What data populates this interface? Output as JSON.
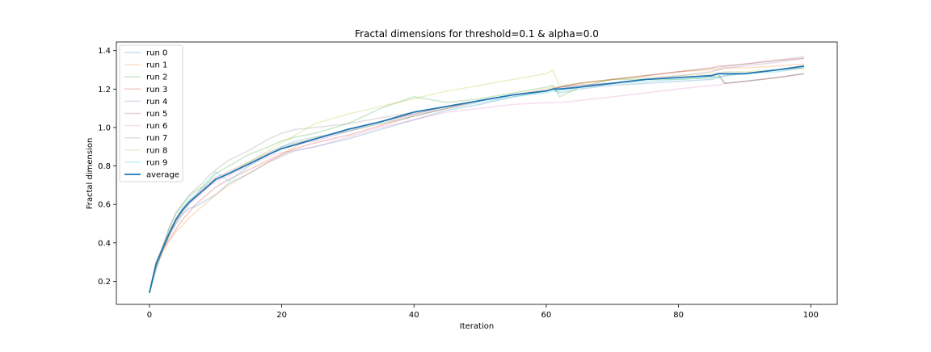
{
  "chart_data": {
    "type": "line",
    "title": "Fractal dimensions for threshold=0.1 & alpha=0.0",
    "xlabel": "Iteration",
    "ylabel": "Fractal dimension",
    "xlim": [
      -5,
      104
    ],
    "ylim": [
      0.08,
      1.445
    ],
    "xticks": [
      0,
      20,
      40,
      60,
      80,
      100
    ],
    "yticks": [
      0.2,
      0.4,
      0.6,
      0.8,
      1.0,
      1.2,
      1.4
    ],
    "xtick_labels": [
      "0",
      "20",
      "40",
      "60",
      "80",
      "100"
    ],
    "ytick_labels": [
      "0.2",
      "0.4",
      "0.6",
      "0.8",
      "1.0",
      "1.2",
      "1.4"
    ],
    "grid": false,
    "legend_position": "upper-left",
    "anchors": [
      0,
      1,
      2,
      3,
      4,
      5,
      6,
      7,
      8,
      9,
      10,
      12,
      15,
      18,
      20,
      22,
      25,
      30,
      35,
      40,
      45,
      50,
      55,
      60,
      61,
      62,
      65,
      70,
      75,
      80,
      85,
      86,
      87,
      90,
      95,
      99
    ],
    "series": [
      {
        "name": "run 0",
        "color": "#1f77b4",
        "opacity": 0.25,
        "width": 1.5,
        "values": [
          0.14,
          0.26,
          0.36,
          0.44,
          0.5,
          0.55,
          0.58,
          0.59,
          0.61,
          0.63,
          0.65,
          0.71,
          0.76,
          0.82,
          0.85,
          0.88,
          0.9,
          0.94,
          0.99,
          1.04,
          1.09,
          1.12,
          1.16,
          1.19,
          1.2,
          1.18,
          1.2,
          1.22,
          1.23,
          1.24,
          1.25,
          1.26,
          1.27,
          1.28,
          1.3,
          1.31
        ]
      },
      {
        "name": "run 1",
        "color": "#ff7f0e",
        "opacity": 0.25,
        "width": 1.5,
        "values": [
          0.14,
          0.27,
          0.35,
          0.41,
          0.46,
          0.49,
          0.53,
          0.56,
          0.59,
          0.62,
          0.65,
          0.7,
          0.76,
          0.82,
          0.86,
          0.9,
          0.95,
          0.98,
          1.02,
          1.06,
          1.1,
          1.14,
          1.17,
          1.2,
          1.21,
          1.21,
          1.23,
          1.25,
          1.27,
          1.29,
          1.3,
          1.3,
          1.31,
          1.31,
          1.32,
          1.33
        ]
      },
      {
        "name": "run 2",
        "color": "#2ca02c",
        "opacity": 0.25,
        "width": 1.5,
        "values": [
          0.14,
          0.3,
          0.38,
          0.48,
          0.55,
          0.6,
          0.64,
          0.67,
          0.69,
          0.72,
          0.76,
          0.8,
          0.86,
          0.9,
          0.93,
          0.95,
          0.97,
          1.02,
          1.1,
          1.16,
          1.13,
          1.15,
          1.18,
          1.21,
          1.22,
          1.16,
          1.21,
          1.25,
          1.25,
          1.25,
          1.26,
          1.27,
          1.23,
          1.24,
          1.26,
          1.28
        ]
      },
      {
        "name": "run 3",
        "color": "#d62728",
        "opacity": 0.25,
        "width": 1.5,
        "values": [
          0.14,
          0.28,
          0.36,
          0.42,
          0.47,
          0.52,
          0.56,
          0.6,
          0.63,
          0.66,
          0.69,
          0.73,
          0.78,
          0.83,
          0.86,
          0.89,
          0.92,
          0.96,
          1.01,
          1.06,
          1.1,
          1.14,
          1.17,
          1.19,
          1.2,
          1.21,
          1.23,
          1.25,
          1.27,
          1.29,
          1.31,
          1.32,
          1.32,
          1.33,
          1.35,
          1.36
        ]
      },
      {
        "name": "run 4",
        "color": "#9467bd",
        "opacity": 0.25,
        "width": 1.5,
        "values": [
          0.14,
          0.29,
          0.38,
          0.45,
          0.52,
          0.57,
          0.61,
          0.64,
          0.67,
          0.7,
          0.73,
          0.76,
          0.81,
          0.86,
          0.89,
          0.91,
          0.93,
          0.98,
          1.03,
          1.07,
          1.11,
          1.14,
          1.17,
          1.19,
          1.2,
          1.21,
          1.22,
          1.23,
          1.25,
          1.27,
          1.29,
          1.3,
          1.31,
          1.32,
          1.34,
          1.36
        ]
      },
      {
        "name": "run 5",
        "color": "#8c564b",
        "opacity": 0.25,
        "width": 1.5,
        "values": [
          0.14,
          0.29,
          0.37,
          0.46,
          0.53,
          0.58,
          0.62,
          0.65,
          0.68,
          0.71,
          0.74,
          0.77,
          0.82,
          0.87,
          0.9,
          0.92,
          0.94,
          0.99,
          1.03,
          1.07,
          1.11,
          1.14,
          1.17,
          1.19,
          1.2,
          1.21,
          1.22,
          1.23,
          1.25,
          1.26,
          1.27,
          1.28,
          1.23,
          1.24,
          1.26,
          1.28
        ]
      },
      {
        "name": "run 6",
        "color": "#e377c2",
        "opacity": 0.25,
        "width": 1.5,
        "values": [
          0.14,
          0.28,
          0.37,
          0.44,
          0.5,
          0.55,
          0.6,
          0.63,
          0.66,
          0.69,
          0.72,
          0.75,
          0.8,
          0.85,
          0.87,
          0.88,
          0.9,
          0.95,
          1.0,
          1.04,
          1.08,
          1.1,
          1.12,
          1.13,
          1.13,
          1.13,
          1.14,
          1.16,
          1.18,
          1.2,
          1.22,
          1.22,
          1.23,
          1.24,
          1.26,
          1.28
        ]
      },
      {
        "name": "run 7",
        "color": "#7f7f7f",
        "opacity": 0.25,
        "width": 1.5,
        "values": [
          0.14,
          0.29,
          0.38,
          0.48,
          0.56,
          0.6,
          0.65,
          0.68,
          0.71,
          0.75,
          0.78,
          0.83,
          0.88,
          0.94,
          0.97,
          0.99,
          1.0,
          1.02,
          1.05,
          1.08,
          1.11,
          1.14,
          1.17,
          1.19,
          1.2,
          1.21,
          1.23,
          1.25,
          1.27,
          1.29,
          1.31,
          1.31,
          1.32,
          1.33,
          1.35,
          1.37
        ]
      },
      {
        "name": "run 8",
        "color": "#bcbd22",
        "opacity": 0.25,
        "width": 1.5,
        "values": [
          0.14,
          0.28,
          0.36,
          0.44,
          0.51,
          0.56,
          0.61,
          0.64,
          0.67,
          0.7,
          0.73,
          0.76,
          0.82,
          0.88,
          0.92,
          0.96,
          1.02,
          1.07,
          1.11,
          1.15,
          1.19,
          1.22,
          1.25,
          1.28,
          1.3,
          1.22,
          1.23,
          1.25,
          1.26,
          1.27,
          1.28,
          1.28,
          1.29,
          1.29,
          1.3,
          1.31
        ]
      },
      {
        "name": "run 9",
        "color": "#17becf",
        "opacity": 0.25,
        "width": 1.5,
        "values": [
          0.14,
          0.27,
          0.37,
          0.45,
          0.52,
          0.58,
          0.62,
          0.65,
          0.69,
          0.73,
          0.77,
          0.72,
          0.8,
          0.86,
          0.9,
          0.93,
          0.95,
          0.98,
          1.02,
          1.06,
          1.1,
          1.13,
          1.16,
          1.18,
          1.19,
          1.19,
          1.21,
          1.23,
          1.24,
          1.25,
          1.26,
          1.26,
          1.27,
          1.28,
          1.29,
          1.31
        ]
      },
      {
        "name": "average",
        "color": "#1f77b4",
        "opacity": 1,
        "width": 1.8,
        "values": [
          0.14,
          0.29,
          0.37,
          0.45,
          0.52,
          0.57,
          0.61,
          0.64,
          0.67,
          0.7,
          0.73,
          0.76,
          0.81,
          0.86,
          0.89,
          0.91,
          0.94,
          0.99,
          1.03,
          1.08,
          1.11,
          1.14,
          1.17,
          1.19,
          1.2,
          1.2,
          1.21,
          1.23,
          1.25,
          1.26,
          1.27,
          1.28,
          1.28,
          1.28,
          1.3,
          1.32
        ]
      }
    ]
  }
}
